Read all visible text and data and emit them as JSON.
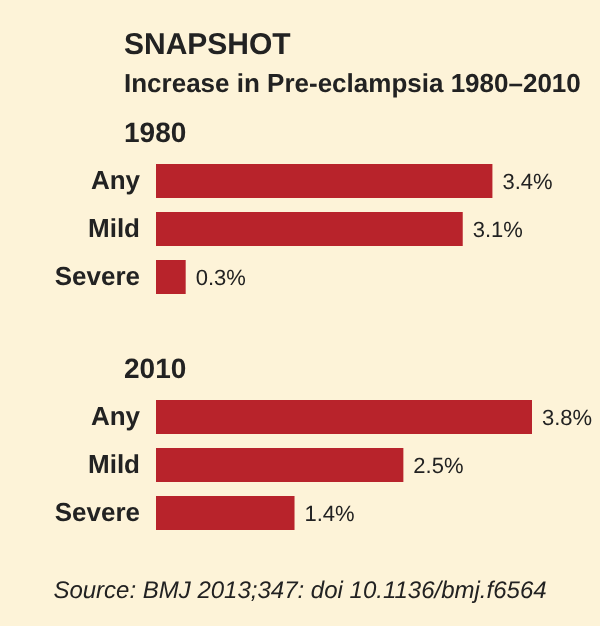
{
  "chart_data": [
    {
      "type": "bar",
      "orientation": "horizontal",
      "title": "SNAPSHOT",
      "subtitle": "Increase in Pre-eclampsia 1980–2010",
      "ylabel": "1980",
      "categories": [
        "Any",
        "Mild",
        "Severe"
      ],
      "values": [
        3.4,
        3.1,
        0.3
      ],
      "value_labels": [
        "3.4%",
        "3.1%",
        "0.3%"
      ],
      "color": "#b8232b"
    },
    {
      "type": "bar",
      "orientation": "horizontal",
      "ylabel": "2010",
      "categories": [
        "Any",
        "Mild",
        "Severe"
      ],
      "values": [
        3.8,
        2.5,
        1.4
      ],
      "value_labels": [
        "3.8%",
        "2.5%",
        "1.4%"
      ],
      "color": "#b8232b",
      "annotations": [
        "Source: BMJ 2013;347: doi 10.1136/bmj.f6564"
      ]
    }
  ]
}
